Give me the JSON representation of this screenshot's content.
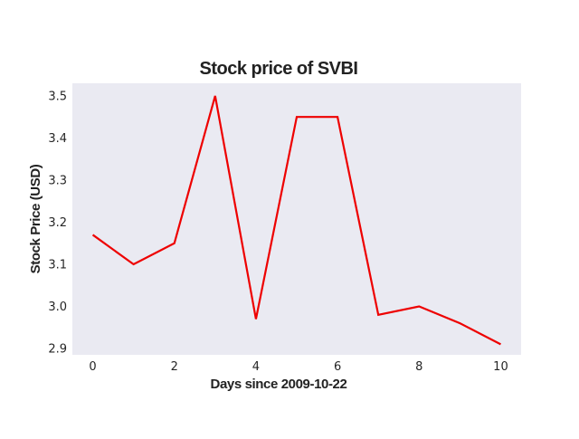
{
  "chart_data": {
    "type": "line",
    "title": "Stock price of SVBI",
    "xlabel": "Days since 2009-10-22",
    "ylabel": "Stock Price (USD)",
    "x": [
      0,
      1,
      2,
      3,
      4,
      5,
      6,
      7,
      8,
      9,
      10
    ],
    "series": [
      {
        "values": [
          3.17,
          3.1,
          3.15,
          3.5,
          2.97,
          3.45,
          3.45,
          2.98,
          3.0,
          2.96,
          2.91
        ],
        "color": "#ee0000"
      }
    ],
    "xlim": [
      -0.5,
      10.5
    ],
    "ylim": [
      2.885,
      3.53
    ],
    "xticks": [
      0,
      2,
      4,
      6,
      8,
      10
    ],
    "xtick_labels": [
      "0",
      "2",
      "4",
      "6",
      "8",
      "10"
    ],
    "yticks": [
      2.9,
      3.0,
      3.1,
      3.2,
      3.3,
      3.4,
      3.5
    ],
    "ytick_labels": [
      "2.9",
      "3.0",
      "3.1",
      "3.2",
      "3.3",
      "3.4",
      "3.5"
    ],
    "grid": false,
    "legend": "none",
    "plot_background": "#eaeaf2"
  }
}
